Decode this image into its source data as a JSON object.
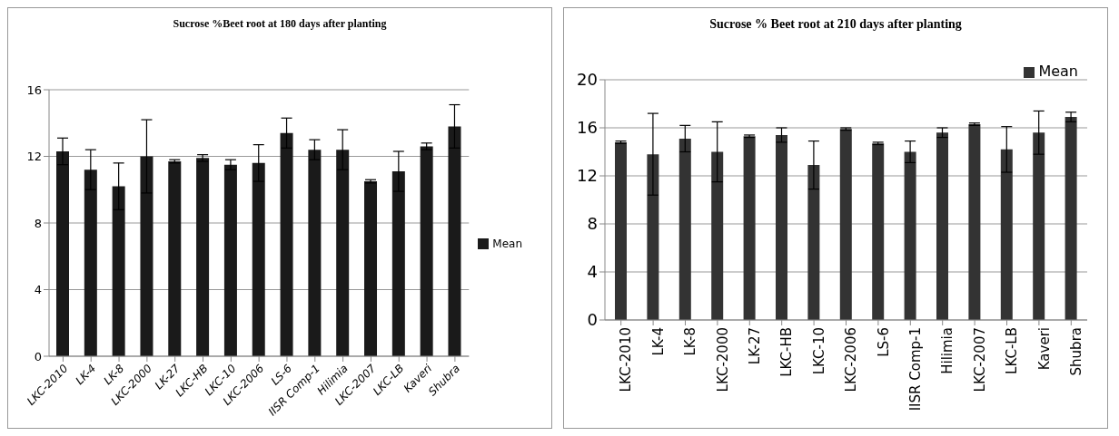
{
  "chart_data": [
    {
      "type": "bar",
      "title": "Sucrose %Beet root at 180 days after planting",
      "categories": [
        "LKC-2010",
        "LK-4",
        "LK-8",
        "LKC-2000",
        "LK-27",
        "LKC-HB",
        "LKC-10",
        "LKC-2006",
        "LS-6",
        "IISR Comp-1",
        "Hilimia",
        "LKC-2007",
        "LKC-LB",
        "Kaveri",
        "Shubra"
      ],
      "series": [
        {
          "name": "Mean",
          "color": "#1a1a1a",
          "values": [
            12.3,
            11.2,
            10.2,
            12.0,
            11.7,
            11.9,
            11.5,
            11.6,
            13.4,
            12.4,
            12.4,
            10.5,
            11.1,
            12.6,
            13.8
          ],
          "errors": [
            0.8,
            1.2,
            1.4,
            2.2,
            0.1,
            0.2,
            0.3,
            1.1,
            0.9,
            0.6,
            1.2,
            0.1,
            1.2,
            0.2,
            1.3
          ]
        }
      ],
      "ylim": [
        0,
        16
      ],
      "yticks": [
        0,
        4,
        8,
        12,
        16
      ],
      "grid": "y",
      "legend": "right"
    },
    {
      "type": "bar",
      "title": "Sucrose % Beet root at 210 days after planting",
      "categories": [
        "LKC-2010",
        "LK-4",
        "LK-8",
        "LKC-2000",
        "LK-27",
        "LKC-HB",
        "LKC-10",
        "LKC-2006",
        "LS-6",
        "IISR Comp-1",
        "Hilimia",
        "LKC-2007",
        "LKC-LB",
        "Kaveri",
        "Shubra"
      ],
      "series": [
        {
          "name": "Mean",
          "color": "#333333",
          "values": [
            14.8,
            13.8,
            15.1,
            14.0,
            15.3,
            15.4,
            12.9,
            15.9,
            14.7,
            14.0,
            15.6,
            16.3,
            14.2,
            15.6,
            16.9
          ],
          "errors": [
            0.1,
            3.4,
            1.1,
            2.5,
            0.1,
            0.6,
            2.0,
            0.1,
            0.1,
            0.9,
            0.4,
            0.1,
            1.9,
            1.8,
            0.4
          ]
        }
      ],
      "ylim": [
        0,
        20
      ],
      "yticks": [
        0,
        4,
        8,
        12,
        16,
        20
      ],
      "grid": "y",
      "legend": "top right"
    }
  ]
}
